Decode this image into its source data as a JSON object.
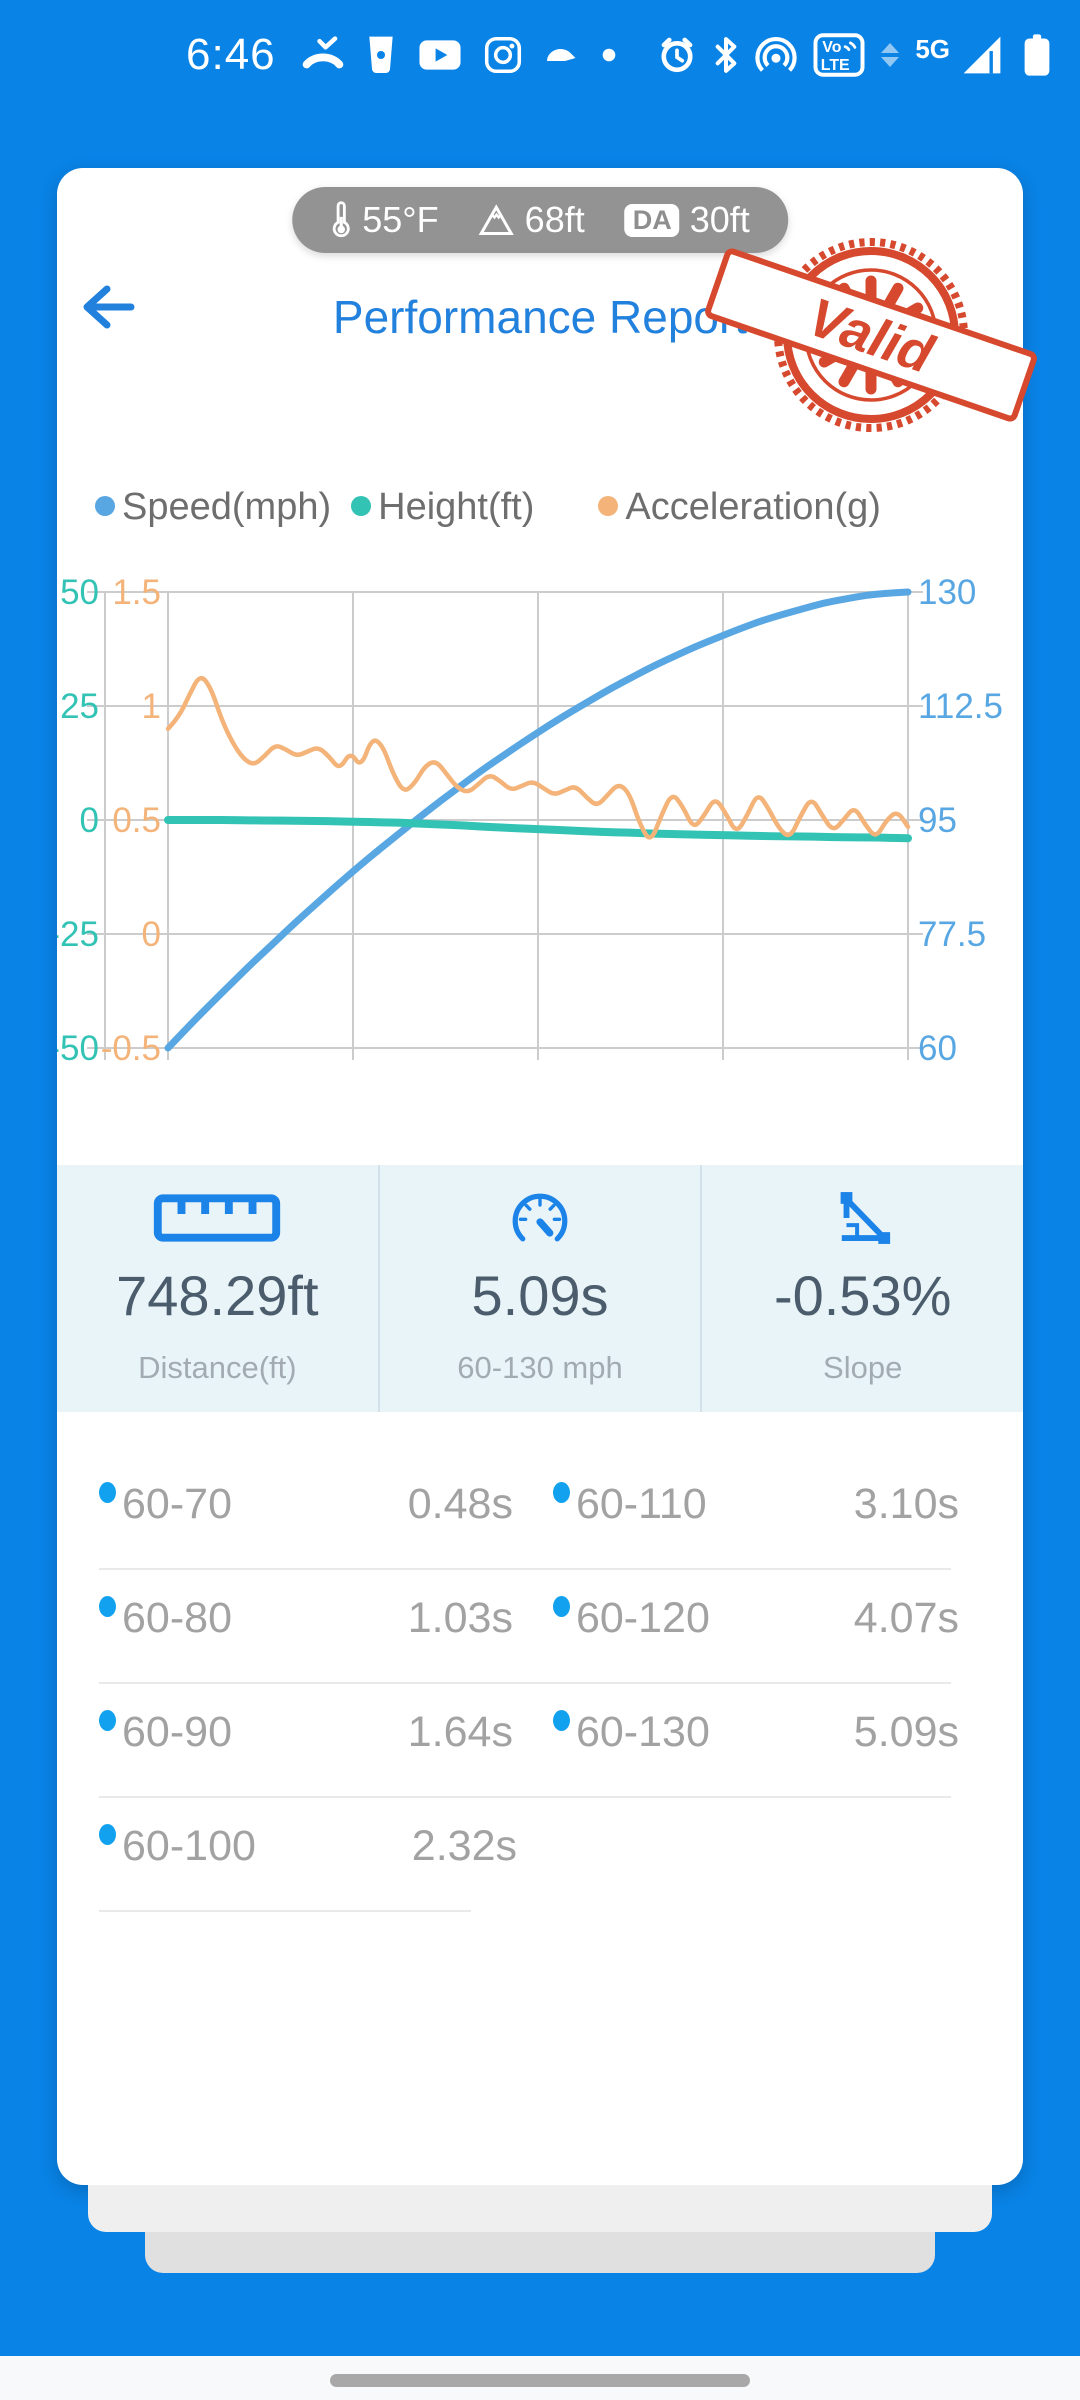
{
  "status_bar": {
    "time": "6:46",
    "network_label": "5G",
    "volte_top": "Vo",
    "volte_bottom": "LTE",
    "icons_left": [
      "missed-call",
      "cup",
      "youtube",
      "instagram",
      "doordash",
      "notification-dot"
    ],
    "icons_right": [
      "alarm",
      "bluetooth",
      "hotspot",
      "volte",
      "network-arrows",
      "5g",
      "signal",
      "battery"
    ]
  },
  "env_pill": {
    "temperature": "55°F",
    "elevation": "68ft",
    "da_badge": "DA",
    "density_altitude": "30ft"
  },
  "header": {
    "title": "Performance Report"
  },
  "stamp": {
    "label": "Valid",
    "color": "#d6492e"
  },
  "chart_data": {
    "type": "line",
    "title": "",
    "xlabel": "",
    "ylabel": "",
    "grid": true,
    "legend_position": "top",
    "series": [
      {
        "name": "Speed(mph)",
        "color": "#58a7e3",
        "axis": "right",
        "values": [
          60,
          63.4,
          66.7,
          69.9,
          73.1,
          76.1,
          79.2,
          82.1,
          85,
          87.8,
          90.5,
          93.1,
          95.7,
          98.2,
          100.6,
          103,
          105.2,
          107.4,
          109.5,
          111.5,
          113.4,
          115.3,
          117,
          118.7,
          120.2,
          121.7,
          123,
          124.3,
          125.5,
          126.5,
          127.4,
          128.3,
          128.9,
          129.5,
          129.8,
          130
        ]
      },
      {
        "name": "Height(ft)",
        "color": "#33c3b5",
        "axis": "left_outer",
        "values": [
          0,
          0,
          0,
          0,
          -0.1,
          -0.1,
          -0.2,
          -0.2,
          -0.3,
          -0.4,
          -0.5,
          -0.6,
          -0.8,
          -1,
          -1.2,
          -1.5,
          -1.7,
          -1.9,
          -2.1,
          -2.3,
          -2.5,
          -2.7,
          -2.8,
          -3,
          -3.1,
          -3.2,
          -3.3,
          -3.4,
          -3.5,
          -3.6,
          -3.6,
          -3.7,
          -3.8,
          -3.8,
          -3.9,
          -4
        ]
      },
      {
        "name": "Acceleration(g)",
        "color": "#f3b379",
        "axis": "left_inner",
        "values": [
          0.9,
          0.95,
          1.05,
          1.14,
          1.08,
          0.94,
          0.84,
          0.77,
          0.74,
          0.78,
          0.83,
          0.81,
          0.78,
          0.8,
          0.82,
          0.78,
          0.72,
          0.8,
          0.73,
          0.86,
          0.83,
          0.7,
          0.62,
          0.66,
          0.74,
          0.76,
          0.7,
          0.64,
          0.62,
          0.66,
          0.7,
          0.67,
          0.63,
          0.65,
          0.67,
          0.64,
          0.61,
          0.63,
          0.65,
          0.6,
          0.56,
          0.61,
          0.66,
          0.62,
          0.48,
          0.4,
          0.52,
          0.62,
          0.56,
          0.46,
          0.52,
          0.6,
          0.53,
          0.44,
          0.52,
          0.62,
          0.55,
          0.46,
          0.42,
          0.52,
          0.6,
          0.52,
          0.45,
          0.5,
          0.56,
          0.48,
          0.42,
          0.5,
          0.54,
          0.47
        ]
      }
    ],
    "axes": {
      "left_outer": {
        "labels": [
          "50",
          "25",
          "0",
          "-25",
          "-50"
        ],
        "range": [
          -50,
          50
        ],
        "color": "#33c3b5"
      },
      "left_inner": {
        "labels": [
          "1.5",
          "1",
          "0.5",
          "0",
          "-0.5"
        ],
        "range": [
          -0.5,
          1.5
        ],
        "color": "#f3b379"
      },
      "right": {
        "labels": [
          "130",
          "112.5",
          "95",
          "77.5",
          "60"
        ],
        "range": [
          60,
          130
        ],
        "color": "#58a7e3"
      }
    }
  },
  "stats": [
    {
      "icon": "ruler-icon",
      "value": "748.29ft",
      "label": "Distance(ft)"
    },
    {
      "icon": "gauge-icon",
      "value": "5.09s",
      "label": "60-130 mph"
    },
    {
      "icon": "slope-icon",
      "value": "-0.53%",
      "label": "Slope"
    }
  ],
  "intervals": [
    {
      "range": "60-70",
      "time": "0.48s"
    },
    {
      "range": "60-80",
      "time": "1.03s"
    },
    {
      "range": "60-90",
      "time": "1.64s"
    },
    {
      "range": "60-100",
      "time": "2.32s"
    },
    {
      "range": "60-110",
      "time": "3.10s"
    },
    {
      "range": "60-120",
      "time": "4.07s"
    },
    {
      "range": "60-130",
      "time": "5.09s"
    }
  ]
}
